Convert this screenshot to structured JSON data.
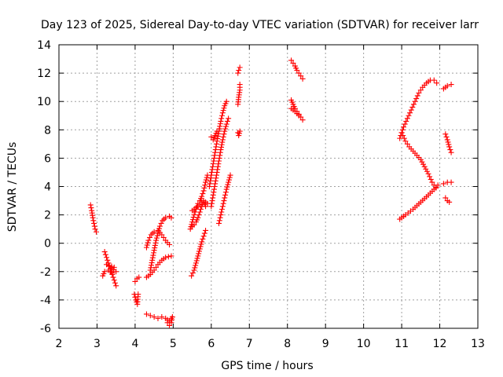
{
  "chart_data": {
    "type": "scatter",
    "title": "Day 123 of 2025, Sidereal Day-to-day VTEC variation (SDTVAR) for receiver larr",
    "xlabel": "GPS time / hours",
    "ylabel": "SDTVAR / TECUs",
    "xlim": [
      2,
      13
    ],
    "ylim": [
      -6,
      14
    ],
    "xticks": [
      2,
      3,
      4,
      5,
      6,
      7,
      8,
      9,
      10,
      11,
      12,
      13
    ],
    "yticks": [
      -6,
      -4,
      -2,
      0,
      2,
      4,
      6,
      8,
      10,
      12,
      14
    ],
    "grid": true,
    "legend": "none",
    "marker": "plus",
    "color": "#ff0000",
    "series": [
      {
        "points": [
          [
            2.83,
            2.7
          ],
          [
            2.86,
            2.3
          ],
          [
            2.89,
            1.8
          ],
          [
            2.92,
            1.4
          ],
          [
            2.95,
            1.0
          ],
          [
            2.98,
            0.8
          ]
        ]
      },
      {
        "points": [
          [
            3.2,
            -0.6
          ],
          [
            3.25,
            -1.0
          ],
          [
            3.3,
            -1.4
          ],
          [
            3.35,
            -1.8
          ],
          [
            3.4,
            -2.2
          ],
          [
            3.45,
            -2.6
          ],
          [
            3.5,
            -3.0
          ]
        ]
      },
      {
        "points": [
          [
            3.15,
            -2.3
          ],
          [
            3.2,
            -2.0
          ],
          [
            3.3,
            -1.9
          ],
          [
            3.4,
            -2.1
          ],
          [
            3.5,
            -2.0
          ],
          [
            3.25,
            -1.5
          ],
          [
            3.45,
            -1.7
          ]
        ]
      },
      {
        "points": [
          [
            4.0,
            -2.7
          ],
          [
            4.05,
            -2.5
          ],
          [
            4.1,
            -2.4
          ]
        ]
      },
      {
        "points": [
          [
            3.98,
            -3.6
          ],
          [
            4.02,
            -4.0
          ],
          [
            4.06,
            -4.3
          ],
          [
            4.08,
            -3.6
          ]
        ]
      },
      {
        "points": [
          [
            4.3,
            -2.4
          ],
          [
            4.4,
            -2.2
          ],
          [
            4.5,
            -1.9
          ],
          [
            4.6,
            -1.5
          ],
          [
            4.7,
            -1.2
          ],
          [
            4.8,
            -1.0
          ],
          [
            4.95,
            -0.9
          ]
        ]
      },
      {
        "points": [
          [
            4.3,
            -0.3
          ],
          [
            4.35,
            0.2
          ],
          [
            4.42,
            0.6
          ],
          [
            4.5,
            0.8
          ],
          [
            4.6,
            0.9
          ],
          [
            4.7,
            0.6
          ],
          [
            4.8,
            0.2
          ],
          [
            4.9,
            -0.1
          ]
        ]
      },
      {
        "points": [
          [
            4.4,
            -1.9
          ],
          [
            4.45,
            -1.2
          ],
          [
            4.5,
            -0.5
          ],
          [
            4.55,
            0.2
          ],
          [
            4.6,
            0.7
          ],
          [
            4.65,
            1.2
          ],
          [
            4.72,
            1.6
          ],
          [
            4.8,
            1.8
          ],
          [
            4.9,
            1.9
          ],
          [
            4.95,
            1.8
          ]
        ]
      },
      {
        "points": [
          [
            4.3,
            -5.0
          ],
          [
            4.4,
            -5.1
          ],
          [
            4.5,
            -5.2
          ],
          [
            4.6,
            -5.3
          ],
          [
            4.7,
            -5.2
          ],
          [
            4.8,
            -5.3
          ],
          [
            4.9,
            -5.5
          ],
          [
            4.95,
            -5.3
          ]
        ]
      },
      {
        "points": [
          [
            4.85,
            -5.6
          ],
          [
            4.9,
            -5.8
          ],
          [
            4.95,
            -5.6
          ],
          [
            4.98,
            -5.2
          ]
        ]
      },
      {
        "points": [
          [
            5.48,
            -2.3
          ],
          [
            5.55,
            -1.9
          ],
          [
            5.6,
            -1.4
          ],
          [
            5.65,
            -0.9
          ],
          [
            5.7,
            -0.4
          ],
          [
            5.75,
            0.1
          ],
          [
            5.8,
            0.5
          ],
          [
            5.85,
            0.9
          ]
        ]
      },
      {
        "points": [
          [
            5.45,
            1.0
          ],
          [
            5.5,
            1.5
          ],
          [
            5.55,
            2.0
          ],
          [
            5.6,
            2.4
          ],
          [
            5.65,
            2.8
          ],
          [
            5.7,
            3.0
          ],
          [
            5.75,
            3.3
          ],
          [
            5.8,
            3.7
          ],
          [
            5.85,
            4.3
          ],
          [
            5.9,
            4.8
          ]
        ]
      },
      {
        "points": [
          [
            5.5,
            1.2
          ],
          [
            5.55,
            1.3
          ],
          [
            5.6,
            1.5
          ],
          [
            5.65,
            1.8
          ],
          [
            5.7,
            2.2
          ],
          [
            5.75,
            2.6
          ],
          [
            5.8,
            2.9
          ],
          [
            5.85,
            2.6
          ]
        ]
      },
      {
        "points": [
          [
            5.5,
            2.3
          ],
          [
            5.6,
            2.5
          ],
          [
            5.7,
            2.7
          ],
          [
            5.75,
            2.9
          ],
          [
            5.8,
            3.0
          ],
          [
            5.9,
            2.8
          ]
        ]
      },
      {
        "points": [
          [
            5.95,
            4.0
          ],
          [
            6.0,
            4.8
          ],
          [
            6.05,
            5.6
          ],
          [
            6.1,
            6.4
          ],
          [
            6.15,
            7.2
          ],
          [
            6.2,
            7.9
          ],
          [
            6.25,
            8.6
          ],
          [
            6.3,
            9.2
          ],
          [
            6.35,
            9.7
          ],
          [
            6.4,
            10.0
          ]
        ]
      },
      {
        "points": [
          [
            6.0,
            2.6
          ],
          [
            6.05,
            3.4
          ],
          [
            6.1,
            4.2
          ],
          [
            6.15,
            5.0
          ],
          [
            6.2,
            5.8
          ],
          [
            6.25,
            6.6
          ],
          [
            6.3,
            7.3
          ],
          [
            6.35,
            7.9
          ],
          [
            6.4,
            8.4
          ],
          [
            6.45,
            8.8
          ]
        ]
      },
      {
        "points": [
          [
            6.0,
            7.5
          ],
          [
            6.05,
            7.3
          ],
          [
            6.1,
            7.6
          ],
          [
            6.15,
            7.9
          ]
        ]
      },
      {
        "points": [
          [
            6.2,
            1.4
          ],
          [
            6.25,
            2.0
          ],
          [
            6.3,
            2.6
          ],
          [
            6.35,
            3.2
          ],
          [
            6.4,
            3.8
          ],
          [
            6.45,
            4.3
          ],
          [
            6.5,
            4.8
          ]
        ]
      },
      {
        "points": [
          [
            6.7,
            7.8
          ],
          [
            6.72,
            7.6
          ],
          [
            6.75,
            7.9
          ]
        ]
      },
      {
        "points": [
          [
            6.7,
            9.8
          ],
          [
            6.72,
            10.3
          ],
          [
            6.75,
            10.8
          ],
          [
            6.75,
            11.2
          ]
        ]
      },
      {
        "points": [
          [
            6.7,
            12.0
          ],
          [
            6.72,
            12.2
          ],
          [
            6.75,
            12.4
          ]
        ]
      },
      {
        "points": [
          [
            8.1,
            12.9
          ],
          [
            8.15,
            12.7
          ],
          [
            8.2,
            12.5
          ],
          [
            8.25,
            12.2
          ],
          [
            8.3,
            12.0
          ],
          [
            8.35,
            11.8
          ],
          [
            8.4,
            11.6
          ]
        ]
      },
      {
        "points": [
          [
            8.1,
            10.1
          ],
          [
            8.15,
            9.8
          ],
          [
            8.2,
            9.5
          ],
          [
            8.25,
            9.3
          ],
          [
            8.3,
            9.1
          ],
          [
            8.35,
            8.9
          ],
          [
            8.4,
            8.7
          ]
        ]
      },
      {
        "points": [
          [
            8.1,
            9.5
          ],
          [
            8.2,
            9.3
          ],
          [
            8.3,
            9.0
          ]
        ]
      },
      {
        "points": [
          [
            10.95,
            1.7
          ],
          [
            11.1,
            2.0
          ],
          [
            11.3,
            2.4
          ],
          [
            11.5,
            2.9
          ],
          [
            11.7,
            3.4
          ],
          [
            11.85,
            3.8
          ],
          [
            11.95,
            4.1
          ]
        ]
      },
      {
        "points": [
          [
            11.0,
            7.8
          ],
          [
            11.1,
            7.2
          ],
          [
            11.2,
            6.8
          ],
          [
            11.3,
            6.5
          ],
          [
            11.4,
            6.2
          ],
          [
            11.5,
            5.9
          ],
          [
            11.6,
            5.4
          ],
          [
            11.7,
            4.9
          ],
          [
            11.8,
            4.3
          ],
          [
            11.9,
            3.9
          ]
        ]
      },
      {
        "points": [
          [
            10.95,
            7.4
          ],
          [
            11.05,
            8.2
          ],
          [
            11.15,
            8.8
          ],
          [
            11.25,
            9.4
          ],
          [
            11.35,
            10.0
          ],
          [
            11.45,
            10.6
          ],
          [
            11.55,
            11.0
          ],
          [
            11.65,
            11.3
          ],
          [
            11.75,
            11.5
          ],
          [
            11.85,
            11.5
          ],
          [
            11.92,
            11.3
          ]
        ]
      },
      {
        "points": [
          [
            12.1,
            10.9
          ],
          [
            12.2,
            11.1
          ],
          [
            12.3,
            11.2
          ]
        ]
      },
      {
        "points": [
          [
            12.15,
            7.7
          ],
          [
            12.2,
            7.3
          ],
          [
            12.25,
            6.8
          ],
          [
            12.3,
            6.4
          ]
        ]
      },
      {
        "points": [
          [
            12.1,
            4.2
          ],
          [
            12.2,
            4.3
          ],
          [
            12.3,
            4.3
          ]
        ]
      },
      {
        "points": [
          [
            12.15,
            3.2
          ],
          [
            12.2,
            3.0
          ],
          [
            12.25,
            2.9
          ]
        ]
      }
    ]
  }
}
